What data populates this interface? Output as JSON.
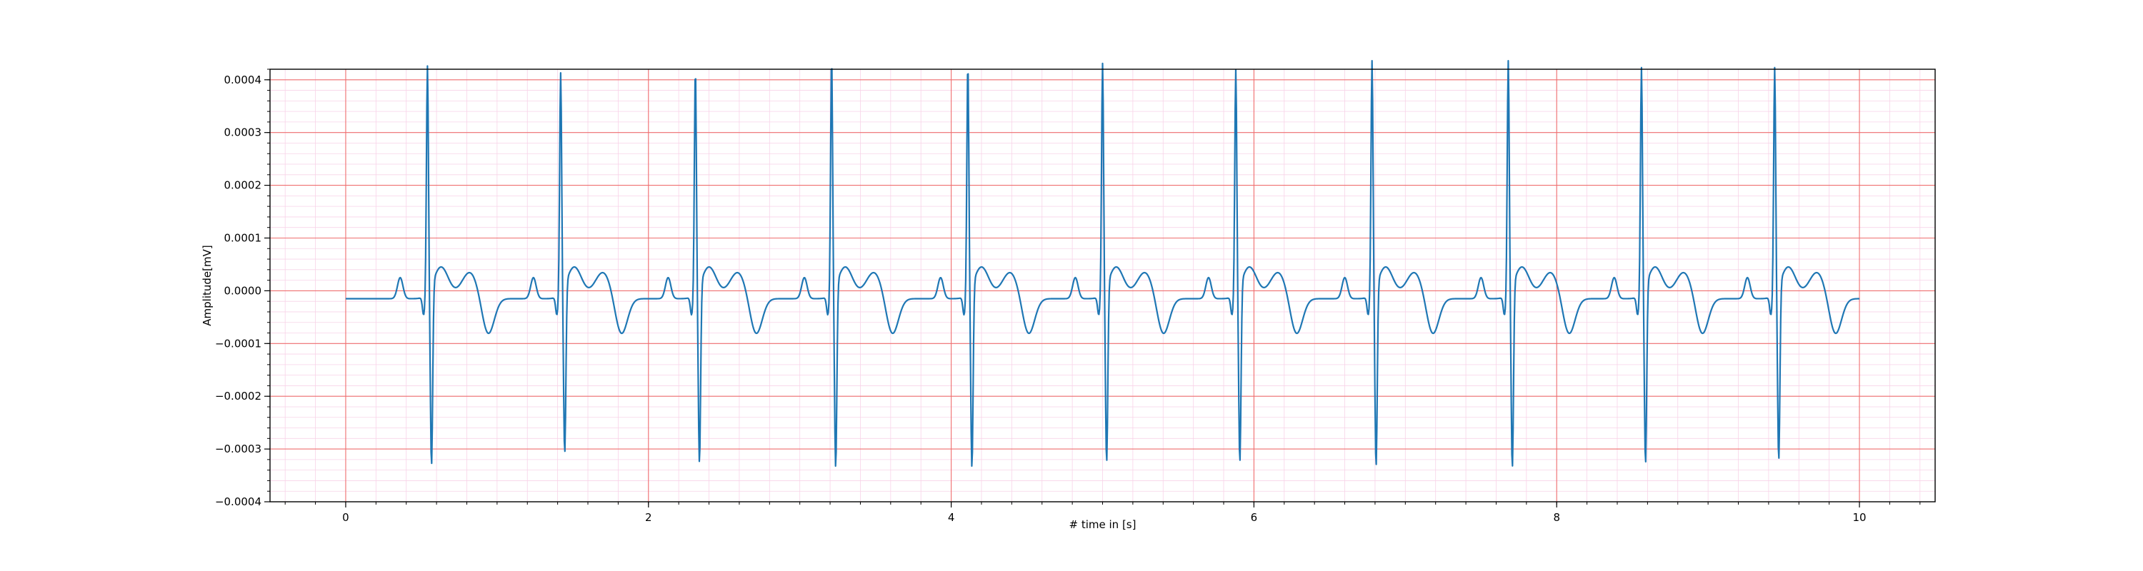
{
  "chart_data": {
    "type": "line",
    "title": "",
    "xlabel": "# time in [s]",
    "ylabel": "Amplitude[mV]",
    "xlim": [
      -0.5,
      10.5
    ],
    "ylim": [
      -0.0004,
      0.00042
    ],
    "x_ticks": [
      0,
      2,
      4,
      6,
      8,
      10
    ],
    "x_tick_labels": [
      "0",
      "2",
      "4",
      "6",
      "8",
      "10"
    ],
    "y_ticks": [
      -0.0004,
      -0.0003,
      -0.0002,
      -0.0001,
      0.0,
      0.0001,
      0.0002,
      0.0003,
      0.0004
    ],
    "y_tick_labels": [
      "−0.0004",
      "−0.0003",
      "−0.0002",
      "−0.0001",
      "0.0000",
      "0.0001",
      "0.0002",
      "0.0003",
      "0.0004"
    ],
    "x_minor_step": 0.2,
    "y_minor_step": 2e-05,
    "grid": true,
    "legend": "none",
    "colors": {
      "line": "#1f77b4",
      "major_grid": "#ef6f6f",
      "minor_grid": "#f8d3e8",
      "axes": "#000000"
    },
    "sample_rate_hz": 250,
    "duration_s": 10,
    "baseline_mV": -1.5e-05,
    "beats": [
      {
        "r_time": 0.54,
        "r_peak": 0.000415,
        "s_trough": -0.000358
      },
      {
        "r_time": 1.42,
        "r_peak": 0.000402,
        "s_trough": -0.000335
      },
      {
        "r_time": 2.31,
        "r_peak": 0.00041,
        "s_trough": -0.000353
      },
      {
        "r_time": 3.21,
        "r_peak": 0.00043,
        "s_trough": -0.000362
      },
      {
        "r_time": 4.11,
        "r_peak": 0.00042,
        "s_trough": -0.000362
      },
      {
        "r_time": 5.0,
        "r_peak": 0.00042,
        "s_trough": -0.000352
      },
      {
        "r_time": 5.88,
        "r_peak": 0.000408,
        "s_trough": -0.000352
      },
      {
        "r_time": 6.78,
        "r_peak": 0.000425,
        "s_trough": -0.00036
      },
      {
        "r_time": 7.68,
        "r_peak": 0.000425,
        "s_trough": -0.000363
      },
      {
        "r_time": 8.56,
        "r_peak": 0.000412,
        "s_trough": -0.000355
      },
      {
        "r_time": 9.44,
        "r_peak": 0.000412,
        "s_trough": -0.000348
      }
    ],
    "p_wave_amp": 4e-05,
    "t_wave_amp": 5e-05,
    "u_wave_amp": -7e-05
  }
}
